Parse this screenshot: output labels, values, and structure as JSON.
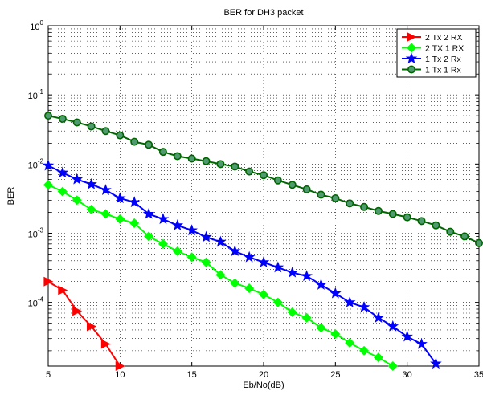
{
  "chart_data": {
    "type": "line",
    "title": "BER for DH3 packet",
    "xlabel": "Eb/No(dB)",
    "ylabel": "BER",
    "xlim": [
      5,
      35
    ],
    "ylim": [
      1.2e-05,
      1
    ],
    "yscale": "log",
    "grid": true,
    "legend_position": "top-right",
    "x_ticks": [
      5,
      10,
      15,
      20,
      25,
      30,
      35
    ],
    "x_tick_labels": [
      "5",
      "10",
      "15",
      "20",
      "25",
      "30",
      "35"
    ],
    "y_ticks": [
      1,
      0.1,
      0.01,
      0.001,
      0.0001
    ],
    "y_tick_labels": [
      {
        "base": "10",
        "exp": "0"
      },
      {
        "base": "10",
        "exp": "-1"
      },
      {
        "base": "10",
        "exp": "-2"
      },
      {
        "base": "10",
        "exp": "-3"
      },
      {
        "base": "10",
        "exp": "-4"
      }
    ],
    "series": [
      {
        "name": "2 Tx 2 RX",
        "color": "#ff0000",
        "marker": "triangle-right",
        "x": [
          5,
          6,
          7,
          8,
          9,
          10
        ],
        "y": [
          0.0002,
          0.00015,
          7.5e-05,
          4.5e-05,
          2.5e-05,
          1.2e-05
        ]
      },
      {
        "name": "2 TX 1 RX",
        "color": "#00ff00",
        "marker": "diamond",
        "x": [
          5,
          6,
          7,
          8,
          9,
          10,
          11,
          12,
          13,
          14,
          15,
          16,
          17,
          18,
          19,
          20,
          21,
          22,
          23,
          24,
          25,
          26,
          27,
          28,
          29
        ],
        "y": [
          0.005,
          0.004,
          0.003,
          0.0022,
          0.0019,
          0.0016,
          0.0014,
          0.0009,
          0.0007,
          0.00055,
          0.00045,
          0.00038,
          0.00025,
          0.00019,
          0.00016,
          0.00013,
          0.0001,
          7.2e-05,
          6e-05,
          4.3e-05,
          3.5e-05,
          2.6e-05,
          2e-05,
          1.6e-05,
          1.2e-05
        ]
      },
      {
        "name": "1 Tx 2 Rx",
        "color": "#0000ff",
        "marker": "star",
        "x": [
          5,
          6,
          7,
          8,
          9,
          10,
          11,
          12,
          13,
          14,
          15,
          16,
          17,
          18,
          19,
          20,
          21,
          22,
          23,
          24,
          25,
          26,
          27,
          28,
          29,
          30,
          31,
          32
        ],
        "y": [
          0.0095,
          0.0075,
          0.006,
          0.0051,
          0.0042,
          0.0032,
          0.0028,
          0.0019,
          0.0016,
          0.0013,
          0.0011,
          0.00088,
          0.00075,
          0.00055,
          0.00045,
          0.00038,
          0.00032,
          0.00027,
          0.00024,
          0.00018,
          0.000135,
          0.0001,
          8.5e-05,
          6e-05,
          4.5e-05,
          3.2e-05,
          2.5e-05,
          1.3e-05
        ]
      },
      {
        "name": "1 Tx 1 Rx",
        "color": "#006400",
        "marker": "circle",
        "x": [
          5,
          6,
          7,
          8,
          9,
          10,
          11,
          12,
          13,
          14,
          15,
          16,
          17,
          18,
          19,
          20,
          21,
          22,
          23,
          24,
          25,
          26,
          27,
          28,
          29,
          30,
          31,
          32,
          33,
          34,
          35
        ],
        "y": [
          0.05,
          0.045,
          0.04,
          0.035,
          0.03,
          0.026,
          0.021,
          0.019,
          0.015,
          0.013,
          0.012,
          0.011,
          0.01,
          0.0092,
          0.0078,
          0.0069,
          0.0058,
          0.005,
          0.0043,
          0.0036,
          0.0032,
          0.0027,
          0.0024,
          0.0021,
          0.0019,
          0.0017,
          0.0015,
          0.0013,
          0.00105,
          0.0009,
          0.00072
        ]
      }
    ]
  }
}
